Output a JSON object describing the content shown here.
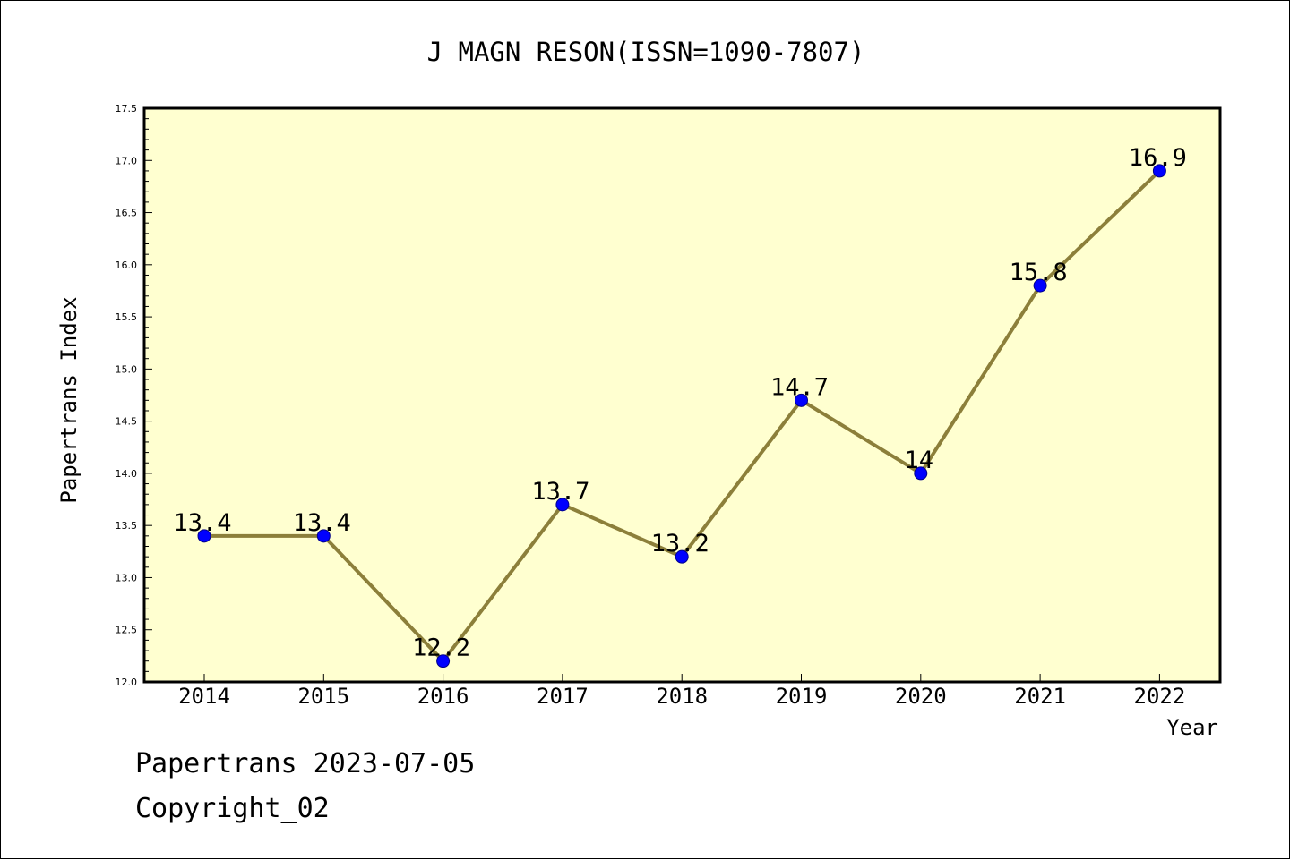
{
  "title": "J MAGN RESON(ISSN=1090-7807)",
  "footer": {
    "line1": "Papertrans 2023-07-05",
    "line2": "Copyright_02"
  },
  "colors": {
    "plot_background": "#ffffd0",
    "line": "#8c7f3a",
    "marker": "#0000ff"
  },
  "chart_data": {
    "type": "line",
    "title": "J MAGN RESON(ISSN=1090-7807)",
    "xlabel": "Year",
    "ylabel": "Papertrans Index",
    "categories": [
      "2014",
      "2015",
      "2016",
      "2017",
      "2018",
      "2019",
      "2020",
      "2021",
      "2022"
    ],
    "values": [
      13.4,
      13.4,
      12.2,
      13.7,
      13.2,
      14.7,
      14.0,
      15.8,
      16.9
    ],
    "data_labels": [
      "13.4",
      "13.4",
      "12.2",
      "13.7",
      "13.2",
      "14.7",
      "14",
      "15.8",
      "16.9"
    ],
    "ylim": [
      12.0,
      17.5
    ],
    "yticks": [
      "12.0",
      "12.5",
      "13.0",
      "13.5",
      "14.0",
      "14.5",
      "15.0",
      "15.5",
      "16.0",
      "16.5",
      "17.0",
      "17.5"
    ],
    "grid": false,
    "legend": "none"
  }
}
